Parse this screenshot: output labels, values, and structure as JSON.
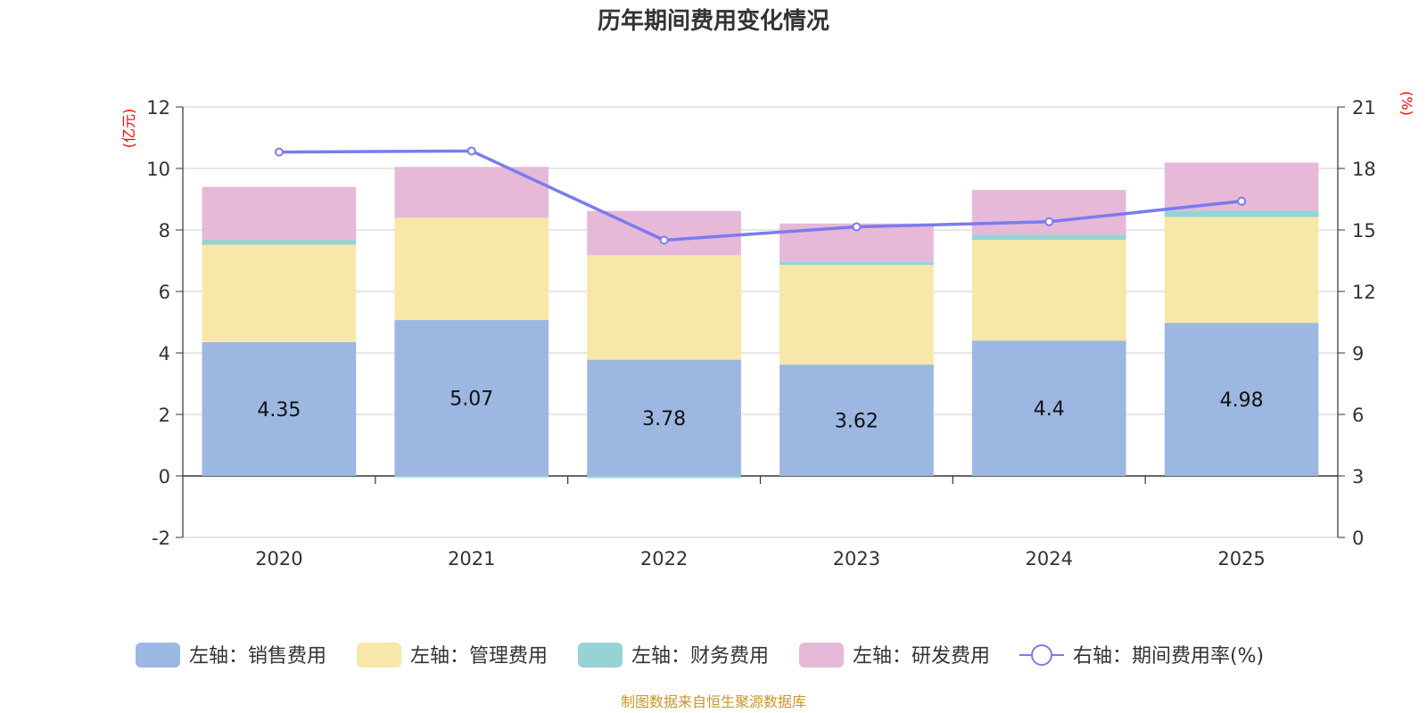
{
  "chart_data": {
    "type": "bar",
    "title": "历年期间费用变化情况",
    "categories": [
      "2020",
      "2021",
      "2022",
      "2023",
      "2024",
      "2025"
    ],
    "left_axis": {
      "unit": "(亿元)",
      "ylim": [
        -2,
        12
      ],
      "ticks": [
        "-2",
        "0",
        "2",
        "4",
        "6",
        "8",
        "10",
        "12"
      ]
    },
    "right_axis": {
      "unit": "(%)",
      "ylim": [
        0,
        21
      ],
      "ticks": [
        "0",
        "3",
        "6",
        "9",
        "12",
        "15",
        "18",
        "21"
      ]
    },
    "series": [
      {
        "name": "左轴：销售费用",
        "axis": "left",
        "type": "bar",
        "color": "#9bb7e2",
        "values": [
          4.35,
          5.07,
          3.78,
          3.62,
          4.4,
          4.98
        ],
        "labels": [
          "4.35",
          "5.07",
          "3.78",
          "3.62",
          "4.4",
          "4.98"
        ]
      },
      {
        "name": "左轴：管理费用",
        "axis": "left",
        "type": "bar",
        "color": "#f7e7a8",
        "values": [
          3.17,
          3.33,
          3.4,
          3.24,
          3.28,
          3.44
        ]
      },
      {
        "name": "左轴：财务费用",
        "axis": "left",
        "type": "bar",
        "color": "#96d3d5",
        "values": [
          0.18,
          -0.05,
          -0.07,
          0.1,
          0.17,
          0.21
        ]
      },
      {
        "name": "左轴：研发费用",
        "axis": "left",
        "type": "bar",
        "color": "#e6b9d8",
        "values": [
          1.7,
          1.65,
          1.44,
          1.25,
          1.45,
          1.56
        ]
      },
      {
        "name": "右轴：期间费用率(%)",
        "axis": "right",
        "type": "line",
        "color": "#7b7bef",
        "values": [
          18.8,
          18.85,
          14.5,
          15.15,
          15.4,
          16.4
        ]
      }
    ],
    "legend_position": "bottom"
  },
  "source_note": "制图数据来自恒生聚源数据库"
}
